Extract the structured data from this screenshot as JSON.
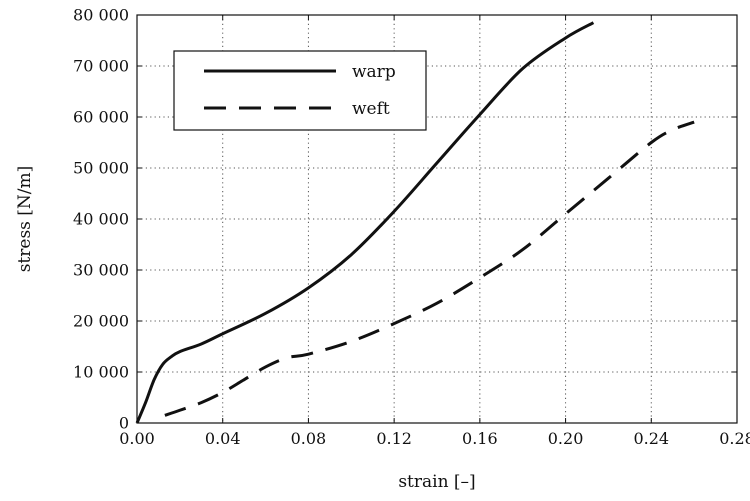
{
  "chart_data": {
    "type": "line",
    "title": "",
    "xlabel": "strain [–]",
    "ylabel": "stress [N/m]",
    "xlim": [
      0,
      0.28
    ],
    "ylim": [
      0,
      80000
    ],
    "x_ticks": [
      0.0,
      0.04,
      0.08,
      0.12,
      0.16,
      0.2,
      0.24,
      0.28
    ],
    "x_tick_labels": [
      "0.00",
      "0.04",
      "0.08",
      "0.12",
      "0.16",
      "0.20",
      "0.24",
      "0.28"
    ],
    "y_ticks": [
      0,
      10000,
      20000,
      30000,
      40000,
      50000,
      60000,
      70000,
      80000
    ],
    "y_tick_labels": [
      "0",
      "10 000",
      "20 000",
      "30 000",
      "40 000",
      "50 000",
      "60 000",
      "70 000",
      "80 000"
    ],
    "grid": true,
    "legend": "top-left",
    "series": [
      {
        "name": "warp",
        "style": "solid",
        "x": [
          0.0,
          0.004,
          0.008,
          0.012,
          0.016,
          0.02,
          0.03,
          0.04,
          0.06,
          0.08,
          0.1,
          0.12,
          0.14,
          0.16,
          0.18,
          0.2,
          0.213
        ],
        "y": [
          0,
          4000,
          8500,
          11500,
          13000,
          14000,
          15500,
          17500,
          21500,
          26500,
          33000,
          41500,
          51000,
          60500,
          69500,
          75500,
          78500
        ]
      },
      {
        "name": "weft",
        "style": "dashed",
        "x": [
          0.013,
          0.02,
          0.03,
          0.04,
          0.05,
          0.06,
          0.07,
          0.08,
          0.1,
          0.12,
          0.14,
          0.16,
          0.18,
          0.2,
          0.22,
          0.24,
          0.25,
          0.26
        ],
        "y": [
          1500,
          2500,
          4000,
          6000,
          8500,
          11000,
          12800,
          13500,
          16000,
          19500,
          23500,
          28500,
          34000,
          41000,
          48000,
          55000,
          57500,
          59000
        ]
      }
    ]
  }
}
